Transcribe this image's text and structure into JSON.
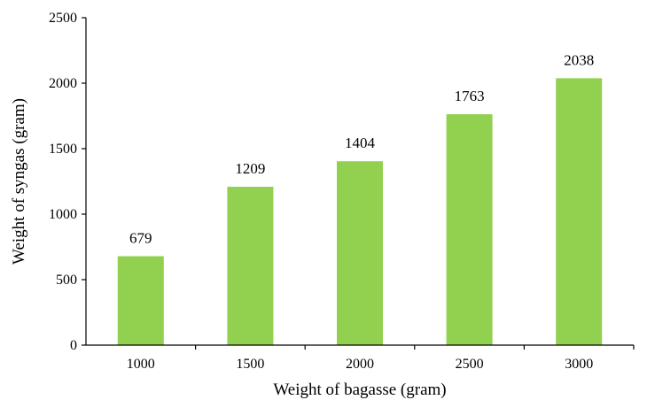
{
  "chart_data": {
    "type": "bar",
    "categories": [
      "1000",
      "1500",
      "2000",
      "2500",
      "3000"
    ],
    "values": [
      679,
      1209,
      1404,
      1763,
      2038
    ],
    "data_labels": [
      "679",
      "1209",
      "1404",
      "1763",
      "2038"
    ],
    "title": "",
    "xlabel": "Weight of bagasse (gram)",
    "ylabel": "Weight of syngas (gram)",
    "ylim": [
      0,
      2500
    ],
    "yticks": [
      "0",
      "500",
      "1000",
      "1500",
      "2000",
      "2500"
    ],
    "ytick_values": [
      0,
      500,
      1000,
      1500,
      2000,
      2500
    ],
    "bar_color": "#92d050",
    "grid": false,
    "legend": "none"
  }
}
